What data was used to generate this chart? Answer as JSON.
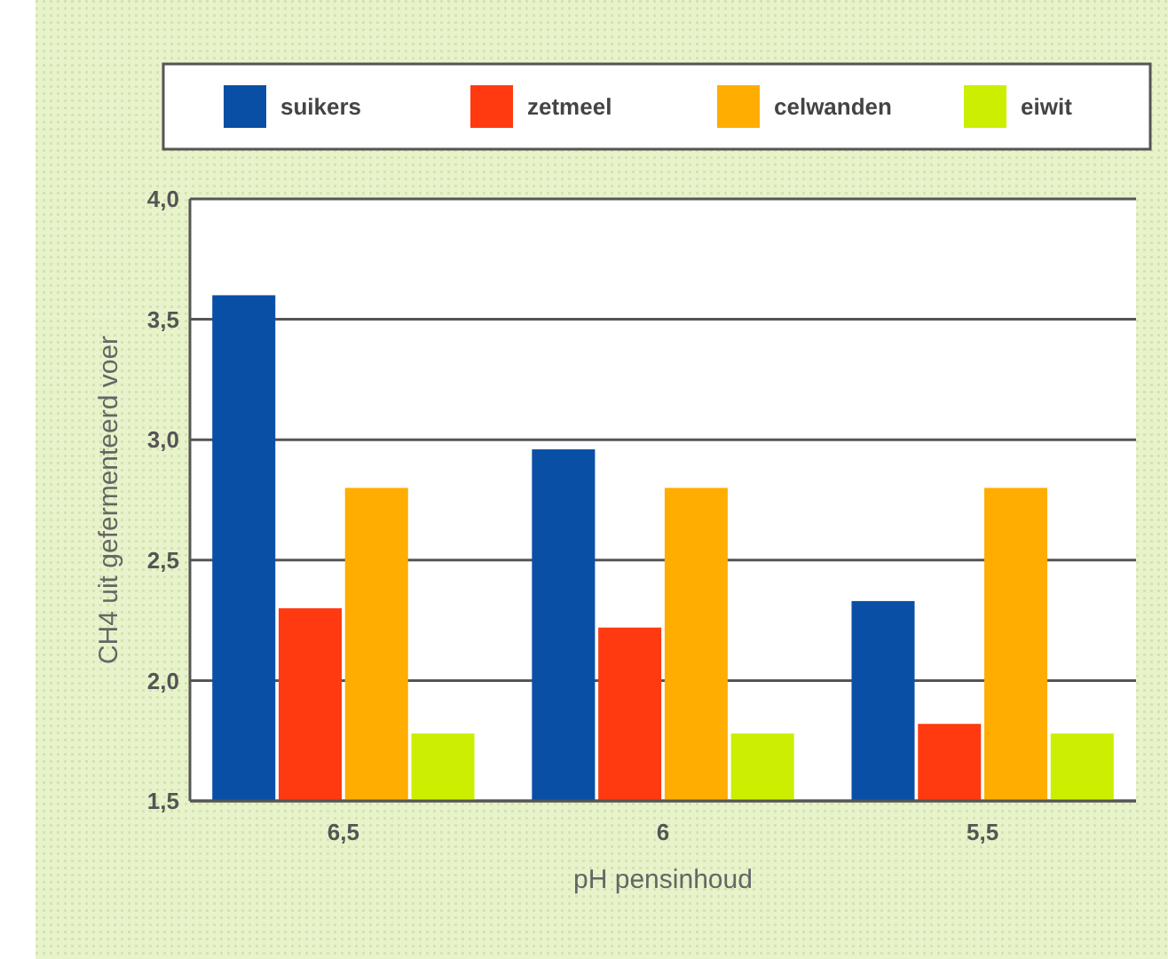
{
  "chart_data": {
    "type": "bar",
    "xlabel": "pH pensinhoud",
    "ylabel": "CH4 uit gefermenteerd voer",
    "categories": [
      "6,5",
      "6",
      "5,5"
    ],
    "series": [
      {
        "name": "suikers",
        "color": "#0a4fa6",
        "values": [
          3.6,
          2.96,
          2.33
        ]
      },
      {
        "name": "zetmeel",
        "color": "#ff3a10",
        "values": [
          2.3,
          2.22,
          1.82
        ]
      },
      {
        "name": "celwanden",
        "color": "#ffad00",
        "values": [
          2.8,
          2.8,
          2.8
        ]
      },
      {
        "name": "eiwit",
        "color": "#ccee00",
        "values": [
          1.78,
          1.78,
          1.78
        ]
      }
    ],
    "ylim": [
      1.5,
      4.0
    ],
    "yticks": [
      {
        "value": 1.5,
        "label": "1,5"
      },
      {
        "value": 2.0,
        "label": "2,0"
      },
      {
        "value": 2.5,
        "label": "2,5"
      },
      {
        "value": 3.0,
        "label": "3,0"
      },
      {
        "value": 3.5,
        "label": "3,5"
      },
      {
        "value": 4.0,
        "label": "4,0"
      }
    ],
    "grid": "y",
    "legend": "top"
  }
}
